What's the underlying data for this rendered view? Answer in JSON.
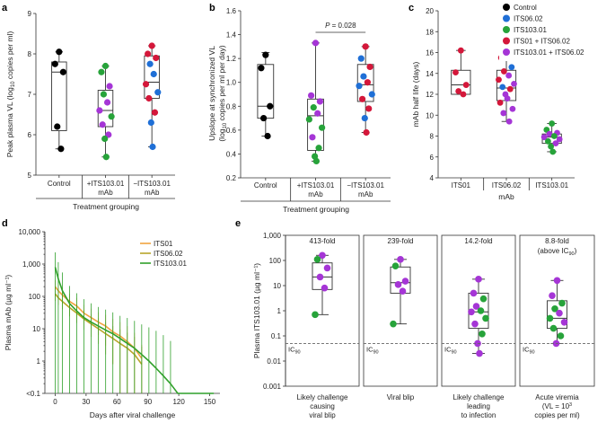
{
  "colors": {
    "control": "#000000",
    "its06": "#1f6fd6",
    "its103": "#27a33a",
    "its01_its06": "#d4173a",
    "its103_its06": "#a535d6",
    "line_its01": "#f0a340",
    "line_its06": "#b8a52a",
    "line_its103": "#2fa02a"
  },
  "legend_c": [
    {
      "label": "Control",
      "color_key": "control"
    },
    {
      "label": "ITS06.02",
      "color_key": "its06"
    },
    {
      "label": "ITS103.01",
      "color_key": "its103"
    },
    {
      "label": "ITS01 + ITS06.02",
      "color_key": "its01_its06"
    },
    {
      "label": "ITS103.01 + ITS06.02",
      "color_key": "its103_its06"
    }
  ],
  "chart_data": [
    {
      "panel": "a",
      "type": "box",
      "ylabel": "Peak plasma VL (log10 copies per ml)",
      "xlabel": "Treatment grouping",
      "ylim": [
        5,
        9
      ],
      "yticks": [
        5,
        6,
        7,
        8,
        9
      ],
      "groups": [
        {
          "label": "Control",
          "box": {
            "min": 5.65,
            "q1": 6.1,
            "median": 7.55,
            "q3": 7.8,
            "max": 8.05
          },
          "points": [
            {
              "y": 8.05,
              "c": "control"
            },
            {
              "y": 7.75,
              "c": "control"
            },
            {
              "y": 7.55,
              "c": "control"
            },
            {
              "y": 6.2,
              "c": "control"
            },
            {
              "y": 5.65,
              "c": "control"
            }
          ]
        },
        {
          "label": "+ITS103.01 mAb",
          "box": {
            "min": 5.45,
            "q1": 6.2,
            "median": 6.6,
            "q3": 7.1,
            "max": 7.7
          },
          "points": [
            {
              "y": 7.7,
              "c": "its103"
            },
            {
              "y": 7.55,
              "c": "its103"
            },
            {
              "y": 7.2,
              "c": "its103_its06"
            },
            {
              "y": 7.0,
              "c": "its103"
            },
            {
              "y": 6.8,
              "c": "its103_its06"
            },
            {
              "y": 6.6,
              "c": "its103_its06"
            },
            {
              "y": 6.45,
              "c": "its103"
            },
            {
              "y": 6.25,
              "c": "its103_its06"
            },
            {
              "y": 6.0,
              "c": "its103_its06"
            },
            {
              "y": 5.9,
              "c": "its103"
            },
            {
              "y": 5.45,
              "c": "its103"
            }
          ]
        },
        {
          "label": "−ITS103.01 mAb",
          "box": {
            "min": 5.7,
            "q1": 6.9,
            "median": 7.3,
            "q3": 7.95,
            "max": 8.2
          },
          "points": [
            {
              "y": 8.2,
              "c": "its01_its06"
            },
            {
              "y": 8.0,
              "c": "its01_its06"
            },
            {
              "y": 7.9,
              "c": "its01_its06"
            },
            {
              "y": 7.75,
              "c": "its06"
            },
            {
              "y": 7.5,
              "c": "its06"
            },
            {
              "y": 7.25,
              "c": "its01_its06"
            },
            {
              "y": 7.05,
              "c": "its06"
            },
            {
              "y": 6.9,
              "c": "its01_its06"
            },
            {
              "y": 6.55,
              "c": "its01_its06"
            },
            {
              "y": 6.3,
              "c": "its06"
            },
            {
              "y": 5.7,
              "c": "its06"
            }
          ]
        }
      ]
    },
    {
      "panel": "b",
      "type": "box",
      "ylabel": "Upslope at synchronized VL (log10 copies per ml per day)",
      "xlabel": "Treatment grouping",
      "annotation": "P = 0.028",
      "ylim": [
        0.2,
        1.6
      ],
      "yticks": [
        0.2,
        0.4,
        0.6,
        0.8,
        1.0,
        1.2,
        1.4,
        1.6
      ],
      "groups": [
        {
          "label": "Control",
          "box": {
            "min": 0.55,
            "q1": 0.7,
            "median": 0.8,
            "q3": 1.15,
            "max": 1.25
          },
          "points": [
            {
              "y": 1.23,
              "c": "control"
            },
            {
              "y": 1.12,
              "c": "control"
            },
            {
              "y": 0.8,
              "c": "control"
            },
            {
              "y": 0.7,
              "c": "control"
            },
            {
              "y": 0.55,
              "c": "control"
            }
          ]
        },
        {
          "label": "+ITS103.01 mAb",
          "box": {
            "min": 0.34,
            "q1": 0.43,
            "median": 0.72,
            "q3": 0.86,
            "max": 1.33
          },
          "points": [
            {
              "y": 1.33,
              "c": "its103_its06"
            },
            {
              "y": 0.89,
              "c": "its103_its06"
            },
            {
              "y": 0.84,
              "c": "its103_its06"
            },
            {
              "y": 0.79,
              "c": "its103"
            },
            {
              "y": 0.74,
              "c": "its103_its06"
            },
            {
              "y": 0.69,
              "c": "its103"
            },
            {
              "y": 0.62,
              "c": "its103"
            },
            {
              "y": 0.54,
              "c": "its103_its06"
            },
            {
              "y": 0.45,
              "c": "its103"
            },
            {
              "y": 0.38,
              "c": "its103"
            },
            {
              "y": 0.34,
              "c": "its103"
            }
          ]
        },
        {
          "label": "−ITS103.01 mAb",
          "box": {
            "min": 0.58,
            "q1": 0.84,
            "median": 0.98,
            "q3": 1.15,
            "max": 1.3
          },
          "points": [
            {
              "y": 1.3,
              "c": "its01_its06"
            },
            {
              "y": 1.2,
              "c": "its06"
            },
            {
              "y": 1.13,
              "c": "its01_its06"
            },
            {
              "y": 1.05,
              "c": "its06"
            },
            {
              "y": 1.0,
              "c": "its01_its06"
            },
            {
              "y": 0.97,
              "c": "its06"
            },
            {
              "y": 0.9,
              "c": "its06"
            },
            {
              "y": 0.86,
              "c": "its01_its06"
            },
            {
              "y": 0.78,
              "c": "its01_its06"
            },
            {
              "y": 0.7,
              "c": "its06"
            },
            {
              "y": 0.58,
              "c": "its01_its06"
            }
          ]
        }
      ]
    },
    {
      "panel": "c",
      "type": "box",
      "ylabel": "mAb half life (days)",
      "xlabel": "mAb",
      "ylim": [
        4,
        20
      ],
      "yticks": [
        4,
        6,
        8,
        10,
        12,
        14,
        16,
        18,
        20
      ],
      "groups": [
        {
          "label": "ITS01",
          "box": {
            "min": 12.0,
            "q1": 12.0,
            "median": 12.9,
            "q3": 14.3,
            "max": 16.2
          },
          "points": [
            {
              "y": 16.2,
              "c": "its01_its06"
            },
            {
              "y": 14.1,
              "c": "its01_its06"
            },
            {
              "y": 12.9,
              "c": "its01_its06"
            },
            {
              "y": 12.3,
              "c": "its01_its06"
            },
            {
              "y": 12.0,
              "c": "its01_its06"
            }
          ]
        },
        {
          "label": "ITS06.02",
          "box": {
            "min": 9.4,
            "q1": 11.4,
            "median": 12.6,
            "q3": 14.3,
            "max": 18.0
          },
          "points": [
            {
              "y": 18.0,
              "c": "its103_its06"
            },
            {
              "y": 15.5,
              "c": "its01_its06"
            },
            {
              "y": 14.6,
              "c": "its06"
            },
            {
              "y": 14.2,
              "c": "its01_its06"
            },
            {
              "y": 13.8,
              "c": "its103_its06"
            },
            {
              "y": 13.4,
              "c": "its01_its06"
            },
            {
              "y": 13.0,
              "c": "its103_its06"
            },
            {
              "y": 12.7,
              "c": "its06"
            },
            {
              "y": 12.5,
              "c": "its01_its06"
            },
            {
              "y": 12.0,
              "c": "its103_its06"
            },
            {
              "y": 11.6,
              "c": "its103_its06"
            },
            {
              "y": 11.2,
              "c": "its01_its06"
            },
            {
              "y": 10.6,
              "c": "its103_its06"
            },
            {
              "y": 10.2,
              "c": "its103_its06"
            },
            {
              "y": 9.4,
              "c": "its103_its06"
            }
          ]
        },
        {
          "label": "ITS103.01",
          "box": {
            "min": 6.5,
            "q1": 7.3,
            "median": 7.9,
            "q3": 8.2,
            "max": 9.2
          },
          "points": [
            {
              "y": 9.2,
              "c": "its103"
            },
            {
              "y": 8.6,
              "c": "its103"
            },
            {
              "y": 8.3,
              "c": "its103_its06"
            },
            {
              "y": 8.2,
              "c": "its103_its06"
            },
            {
              "y": 8.0,
              "c": "its103"
            },
            {
              "y": 7.9,
              "c": "its103_its06"
            },
            {
              "y": 7.7,
              "c": "its103_its06"
            },
            {
              "y": 7.5,
              "c": "its103"
            },
            {
              "y": 7.3,
              "c": "its103_its06"
            },
            {
              "y": 7.0,
              "c": "its103"
            },
            {
              "y": 6.5,
              "c": "its103"
            }
          ]
        }
      ]
    },
    {
      "panel": "d",
      "type": "line",
      "ylabel": "Plasma mAb (µg ml⁻¹)",
      "xlabel": "Days after viral challenge",
      "xlim": [
        -10,
        160
      ],
      "xticks": [
        0,
        30,
        60,
        90,
        120,
        150
      ],
      "ylim_log10": [
        -1,
        4
      ],
      "yticklabels": [
        "<0.1",
        "1",
        "10",
        "100",
        "1,000",
        "10,000"
      ],
      "lod": 0.1,
      "series": [
        {
          "name": "ITS01",
          "color_key": "line_its01",
          "x": [
            0,
            3,
            7,
            14,
            21,
            28,
            35,
            42,
            49,
            56,
            63,
            70,
            77,
            84
          ],
          "y": [
            200,
            150,
            110,
            70,
            50,
            30,
            22,
            16,
            12,
            8,
            6,
            4,
            2.5,
            1.2
          ],
          "err": [
            120,
            100,
            80,
            50,
            40,
            25,
            20,
            16,
            15,
            12,
            10,
            8,
            5,
            2
          ]
        },
        {
          "name": "ITS06.02",
          "color_key": "line_its06",
          "x": [
            0,
            3,
            7,
            14,
            21,
            28,
            35,
            42,
            49,
            56,
            63,
            70,
            77,
            84
          ],
          "y": [
            120,
            90,
            70,
            45,
            30,
            20,
            14,
            10,
            7,
            5,
            3.5,
            2.5,
            1.6,
            0.8
          ],
          "err": [
            80,
            60,
            50,
            35,
            25,
            18,
            14,
            11,
            9,
            7,
            6,
            5,
            4,
            2
          ]
        },
        {
          "name": "ITS103.01",
          "color_key": "line_its103",
          "x": [
            0,
            3,
            7,
            14,
            21,
            28,
            35,
            42,
            49,
            56,
            63,
            70,
            77,
            84,
            91,
            98,
            105,
            112,
            119,
            126,
            140,
            154
          ],
          "y": [
            800,
            350,
            150,
            60,
            35,
            22,
            16,
            12,
            9,
            7,
            5,
            3.5,
            2.5,
            1.6,
            1.0,
            0.6,
            0.35,
            0.2,
            0.1,
            0.1,
            0.1,
            0.1
          ],
          "err": [
            1500,
            800,
            400,
            150,
            90,
            60,
            45,
            35,
            30,
            25,
            20,
            18,
            15,
            12,
            10,
            8,
            6,
            4,
            0,
            0,
            0,
            0
          ]
        }
      ]
    },
    {
      "panel": "e",
      "type": "box",
      "ylabel": "Plasma ITS103.01 (µg ml⁻¹)",
      "ylim_log10": [
        -3,
        3
      ],
      "yticklabels": [
        "0.001",
        "0.01",
        "0.1",
        "1",
        "10",
        "100",
        "1,000"
      ],
      "ic90": 0.05,
      "ic90_label": "IC90",
      "groups": [
        {
          "label": "Likely challenge causing viral blip",
          "fold": "413-fold",
          "box": {
            "min": 0.7,
            "q1": 7,
            "median": 22,
            "q3": 80,
            "max": 160
          },
          "points": [
            {
              "y": 160,
              "c": "its103_its06"
            },
            {
              "y": 110,
              "c": "its103"
            },
            {
              "y": 50,
              "c": "its103_its06"
            },
            {
              "y": 22,
              "c": "its103_its06"
            },
            {
              "y": 8,
              "c": "its103_its06"
            },
            {
              "y": 0.7,
              "c": "its103"
            }
          ]
        },
        {
          "label": "Viral blip",
          "fold": "239-fold",
          "box": {
            "min": 0.3,
            "q1": 5,
            "median": 13,
            "q3": 55,
            "max": 110
          },
          "points": [
            {
              "y": 110,
              "c": "its103_its06"
            },
            {
              "y": 60,
              "c": "its103"
            },
            {
              "y": 15,
              "c": "its103_its06"
            },
            {
              "y": 11,
              "c": "its103_its06"
            },
            {
              "y": 6,
              "c": "its103_its06"
            },
            {
              "y": 0.3,
              "c": "its103"
            }
          ]
        },
        {
          "label": "Likely challenge leading to infection",
          "fold": "14.2-fold",
          "box": {
            "min": 0.02,
            "q1": 0.2,
            "median": 0.9,
            "q3": 5,
            "max": 18
          },
          "points": [
            {
              "y": 18,
              "c": "its103_its06"
            },
            {
              "y": 5,
              "c": "its103_its06"
            },
            {
              "y": 3,
              "c": "its103"
            },
            {
              "y": 1.5,
              "c": "its103_its06"
            },
            {
              "y": 1.0,
              "c": "its103"
            },
            {
              "y": 0.9,
              "c": "its103_its06"
            },
            {
              "y": 0.5,
              "c": "its103"
            },
            {
              "y": 0.3,
              "c": "its103_its06"
            },
            {
              "y": 0.12,
              "c": "its103"
            },
            {
              "y": 0.05,
              "c": "its103_its06"
            },
            {
              "y": 0.02,
              "c": "its103_its06"
            }
          ]
        },
        {
          "label": "Acute viremia (VL = 10³ copies per ml)",
          "fold": "8.8-fold",
          "fold_sub": "(above IC90)",
          "box": {
            "min": 0.05,
            "q1": 0.2,
            "median": 0.5,
            "q3": 2.5,
            "max": 16
          },
          "points": [
            {
              "y": 16,
              "c": "its103_its06"
            },
            {
              "y": 4,
              "c": "its103_its06"
            },
            {
              "y": 2,
              "c": "its103"
            },
            {
              "y": 1.2,
              "c": "its103"
            },
            {
              "y": 0.8,
              "c": "its103_its06"
            },
            {
              "y": 0.5,
              "c": "its103"
            },
            {
              "y": 0.35,
              "c": "its103_its06"
            },
            {
              "y": 0.2,
              "c": "its103"
            },
            {
              "y": 0.1,
              "c": "its103"
            },
            {
              "y": 0.05,
              "c": "its103_its06"
            }
          ]
        }
      ]
    }
  ]
}
